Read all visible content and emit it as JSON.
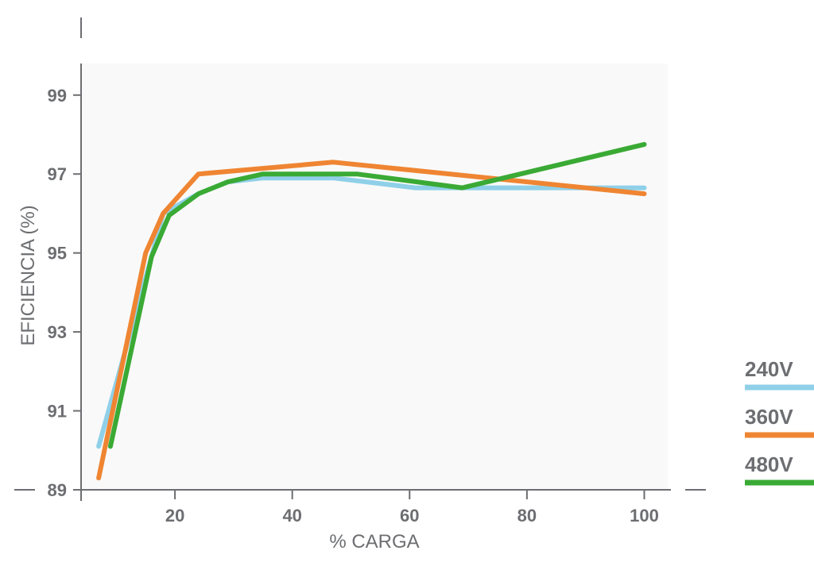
{
  "chart_data": {
    "type": "line",
    "xlabel": "% CARGA",
    "ylabel": "EFICIENCIA (%)",
    "xlim": [
      4,
      104
    ],
    "ylim": [
      89,
      99.8
    ],
    "xticks": [
      20,
      40,
      60,
      80,
      100
    ],
    "yticks": [
      89,
      91,
      93,
      95,
      97,
      99
    ],
    "grid": false,
    "legend_position": "right",
    "series": [
      {
        "name": "240V",
        "color": "#8fd0e8",
        "x": [
          7,
          16,
          18,
          24,
          29,
          35,
          47,
          61,
          69,
          100
        ],
        "y": [
          90.1,
          94.9,
          96.0,
          96.5,
          96.8,
          96.9,
          96.9,
          96.65,
          96.65,
          96.65
        ]
      },
      {
        "name": "360V",
        "color": "#ef8532",
        "x": [
          7,
          15,
          18,
          24,
          47,
          100
        ],
        "y": [
          89.3,
          95.0,
          96.0,
          97.0,
          97.3,
          96.5
        ]
      },
      {
        "name": "480V",
        "color": "#3aaa35",
        "x": [
          9,
          16,
          19,
          24,
          29,
          35,
          51,
          69,
          100
        ],
        "y": [
          90.1,
          94.9,
          95.95,
          96.5,
          96.8,
          97.0,
          97.0,
          96.65,
          97.75
        ]
      }
    ]
  }
}
